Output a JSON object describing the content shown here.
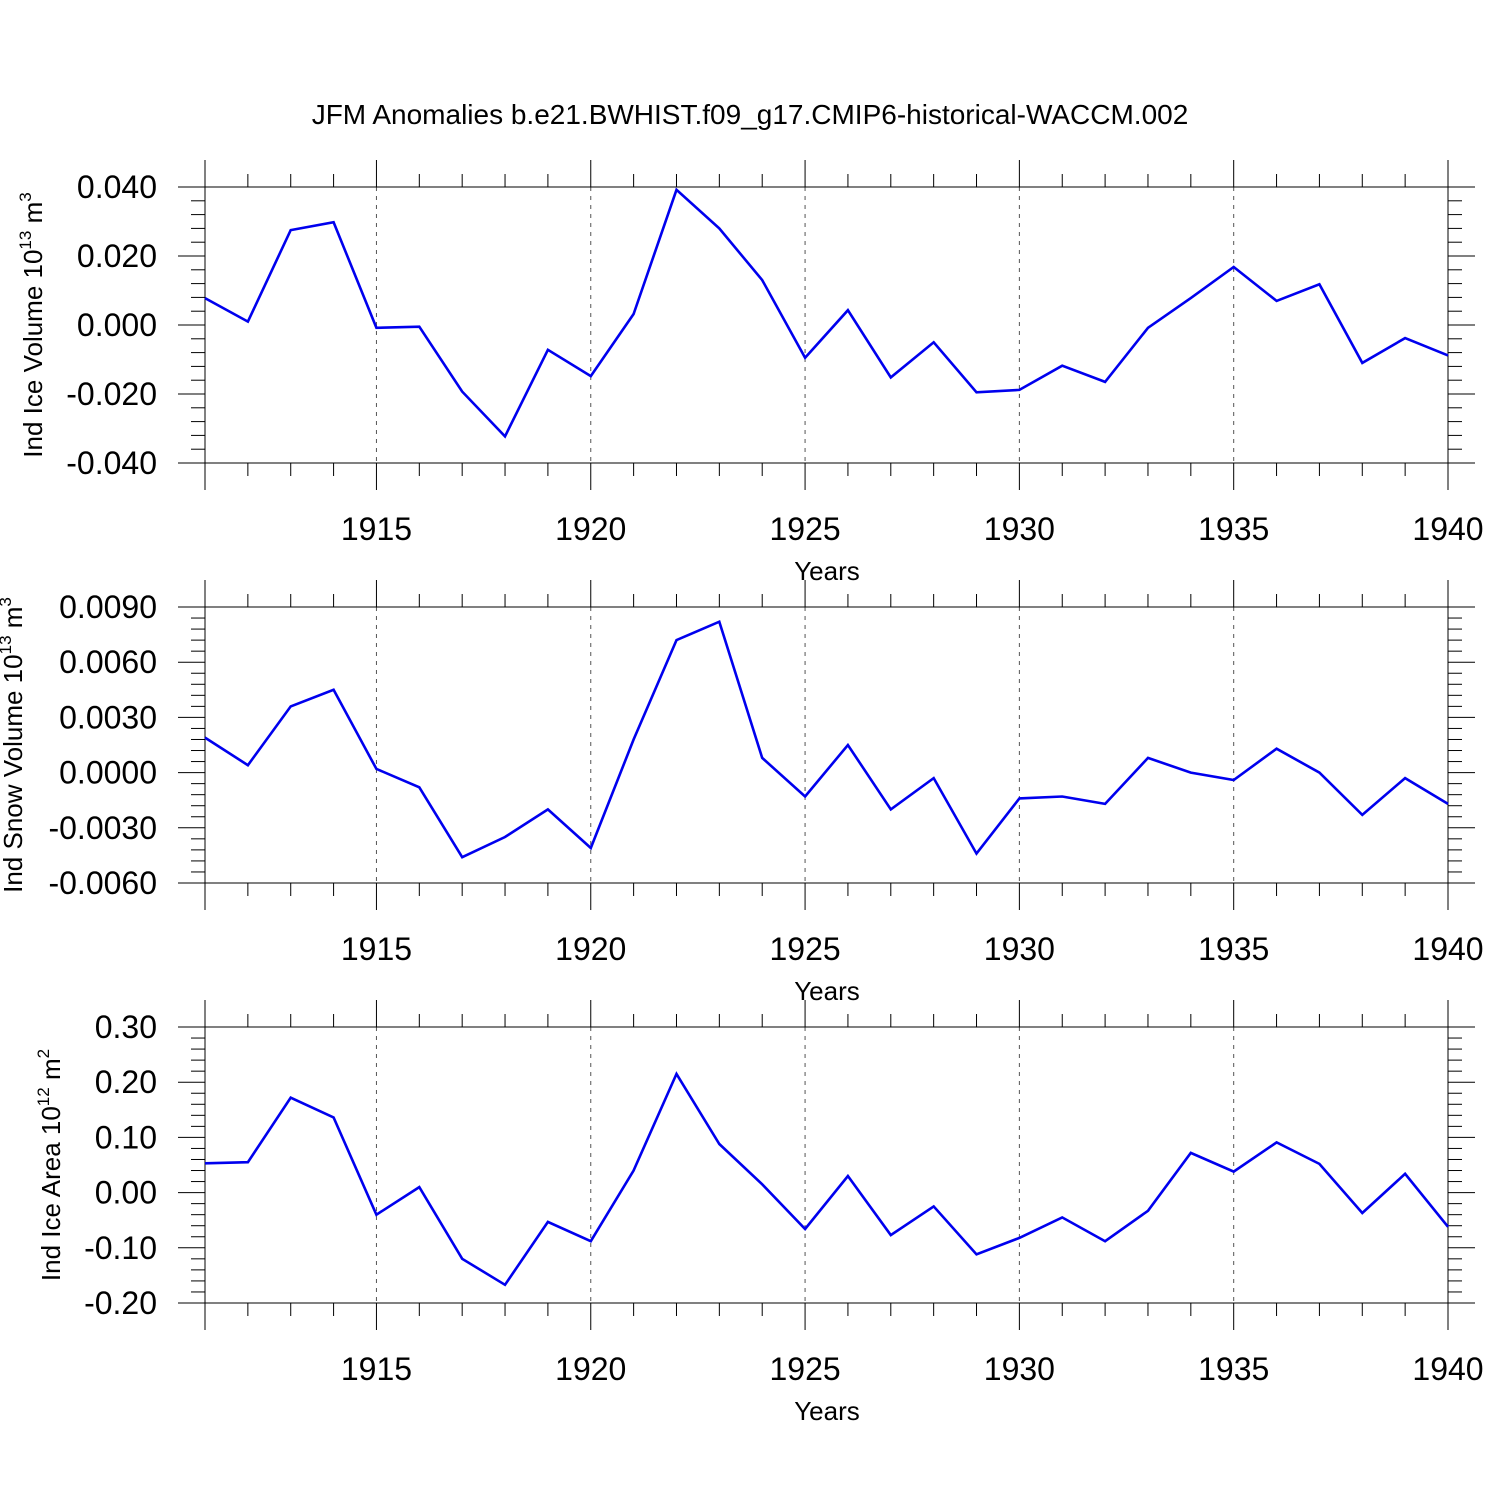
{
  "title": "JFM Anomalies b.e21.BWHIST.f09_g17.CMIP6-historical-WACCM.002",
  "chart_data": [
    {
      "type": "line",
      "xlabel": "Years",
      "ylabel": {
        "main": "Ind Ice Volume 10",
        "sup": "13",
        "unit": " m",
        "unit_sup": "3"
      },
      "x": [
        1911,
        1912,
        1913,
        1914,
        1915,
        1916,
        1917,
        1918,
        1919,
        1920,
        1921,
        1922,
        1923,
        1924,
        1925,
        1926,
        1927,
        1928,
        1929,
        1930,
        1931,
        1932,
        1933,
        1934,
        1935,
        1936,
        1937,
        1938,
        1939,
        1940
      ],
      "values": [
        0.0078,
        0.001,
        0.0275,
        0.0298,
        -0.0008,
        -0.0005,
        -0.0193,
        -0.0323,
        -0.0072,
        -0.0148,
        0.0032,
        0.0392,
        0.028,
        0.013,
        -0.0095,
        0.0043,
        -0.0152,
        -0.005,
        -0.0195,
        -0.0188,
        -0.0118,
        -0.0165,
        -0.0008,
        0.0078,
        0.0168,
        0.007,
        0.0118,
        -0.011,
        -0.0038,
        -0.0088
      ],
      "xlim": [
        1911,
        1940
      ],
      "ylim": [
        -0.04,
        0.04
      ],
      "yticks": [
        -0.04,
        -0.02,
        0,
        0.02,
        0.04
      ],
      "ytick_labels": [
        "-0.040",
        "-0.020",
        "0.000",
        "0.020",
        "0.040"
      ],
      "xticks": [
        1915,
        1920,
        1925,
        1930,
        1935,
        1940
      ],
      "xtick_labels": [
        "1915",
        "1920",
        "1925",
        "1930",
        "1935",
        "1940"
      ],
      "line_color": "#0000ee",
      "grid": "vertical dashed at major x ticks"
    },
    {
      "type": "line",
      "xlabel": "Years",
      "ylabel": {
        "main": "Ind Snow Volume 10",
        "sup": "13",
        "unit": " m",
        "unit_sup": "3"
      },
      "x": [
        1911,
        1912,
        1913,
        1914,
        1915,
        1916,
        1917,
        1918,
        1919,
        1920,
        1921,
        1922,
        1923,
        1924,
        1925,
        1926,
        1927,
        1928,
        1929,
        1930,
        1931,
        1932,
        1933,
        1934,
        1935,
        1936,
        1937,
        1938,
        1939,
        1940
      ],
      "values": [
        0.0019,
        0.0004,
        0.0036,
        0.0045,
        0.0002,
        -0.0008,
        -0.0046,
        -0.0035,
        -0.002,
        -0.0041,
        0.0018,
        0.0072,
        0.0082,
        0.0008,
        -0.0013,
        0.0015,
        -0.002,
        -0.0003,
        -0.0044,
        -0.0014,
        -0.0013,
        -0.0017,
        0.0008,
        0.0,
        -0.0004,
        0.0013,
        0.0,
        -0.0023,
        -0.0003,
        -0.0017
      ],
      "xlim": [
        1911,
        1940
      ],
      "ylim": [
        -0.006,
        0.009
      ],
      "yticks": [
        -0.006,
        -0.003,
        0,
        0.003,
        0.006,
        0.009
      ],
      "ytick_labels": [
        "-0.0060",
        "-0.0030",
        "0.0000",
        "0.0030",
        "0.0060",
        "0.0090"
      ],
      "xticks": [
        1915,
        1920,
        1925,
        1930,
        1935,
        1940
      ],
      "xtick_labels": [
        "1915",
        "1920",
        "1925",
        "1930",
        "1935",
        "1940"
      ],
      "line_color": "#0000ee",
      "grid": "vertical dashed at major x ticks"
    },
    {
      "type": "line",
      "xlabel": "Years",
      "ylabel": {
        "main": "Ind Ice Area 10",
        "sup": "12",
        "unit": " m",
        "unit_sup": "2"
      },
      "x": [
        1911,
        1912,
        1913,
        1914,
        1915,
        1916,
        1917,
        1918,
        1919,
        1920,
        1921,
        1922,
        1923,
        1924,
        1925,
        1926,
        1927,
        1928,
        1929,
        1930,
        1931,
        1932,
        1933,
        1934,
        1935,
        1936,
        1937,
        1938,
        1939,
        1940
      ],
      "values": [
        0.053,
        0.055,
        0.172,
        0.136,
        -0.04,
        0.01,
        -0.12,
        -0.167,
        -0.053,
        -0.088,
        0.04,
        0.215,
        0.088,
        0.015,
        -0.066,
        0.03,
        -0.077,
        -0.025,
        -0.112,
        -0.082,
        -0.045,
        -0.088,
        -0.033,
        0.072,
        0.038,
        0.091,
        0.052,
        -0.037,
        0.034,
        -0.062
      ],
      "xlim": [
        1911,
        1940
      ],
      "ylim": [
        -0.2,
        0.3
      ],
      "yticks": [
        -0.2,
        -0.1,
        0,
        0.1,
        0.2,
        0.3
      ],
      "ytick_labels": [
        "-0.20",
        "-0.10",
        "0.00",
        "0.10",
        "0.20",
        "0.30"
      ],
      "xticks": [
        1915,
        1920,
        1925,
        1930,
        1935,
        1940
      ],
      "xtick_labels": [
        "1915",
        "1920",
        "1925",
        "1930",
        "1935",
        "1940"
      ],
      "line_color": "#0000ee",
      "grid": "vertical dashed at major x ticks"
    }
  ]
}
